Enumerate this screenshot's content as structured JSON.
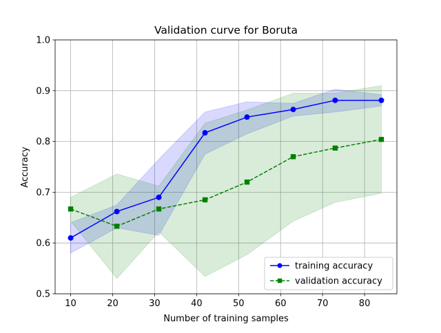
{
  "chart_data": {
    "type": "line",
    "title": "Validation curve for Boruta",
    "xlabel": "Number of training samples",
    "ylabel": "Accuracy",
    "xlim": [
      6.3,
      87.7
    ],
    "ylim": [
      0.5,
      1.0
    ],
    "xticks": [
      10,
      20,
      30,
      40,
      50,
      60,
      70,
      80
    ],
    "yticks": [
      0.5,
      0.6,
      0.7,
      0.8,
      0.9,
      1.0
    ],
    "xtick_labels": [
      "10",
      "20",
      "30",
      "40",
      "50",
      "60",
      "70",
      "80"
    ],
    "ytick_labels": [
      "0.5",
      "0.6",
      "0.7",
      "0.8",
      "0.9",
      "1.0"
    ],
    "grid": true,
    "legend_position": "lower-right",
    "x": [
      10,
      21,
      31,
      42,
      52,
      63,
      73,
      84
    ],
    "series": [
      {
        "name": "training accuracy",
        "color": "#0000ff",
        "line_style": "solid",
        "marker": "circle",
        "values": [
          0.61,
          0.662,
          0.69,
          0.817,
          0.848,
          0.863,
          0.881,
          0.881
        ],
        "band_lower": [
          0.58,
          0.63,
          0.615,
          0.775,
          0.815,
          0.85,
          0.858,
          0.87
        ],
        "band_upper": [
          0.64,
          0.675,
          0.765,
          0.858,
          0.878,
          0.875,
          0.903,
          0.892
        ],
        "band_color": "#0000ff"
      },
      {
        "name": "validation accuracy",
        "color": "#008000",
        "line_style": "dashed",
        "marker": "square",
        "values": [
          0.667,
          0.633,
          0.667,
          0.685,
          0.72,
          0.77,
          0.787,
          0.804
        ],
        "band_lower": [
          0.643,
          0.53,
          0.622,
          0.534,
          0.577,
          0.643,
          0.68,
          0.698
        ],
        "band_upper": [
          0.69,
          0.736,
          0.712,
          0.836,
          0.862,
          0.895,
          0.895,
          0.91
        ],
        "band_color": "#008000"
      }
    ]
  }
}
